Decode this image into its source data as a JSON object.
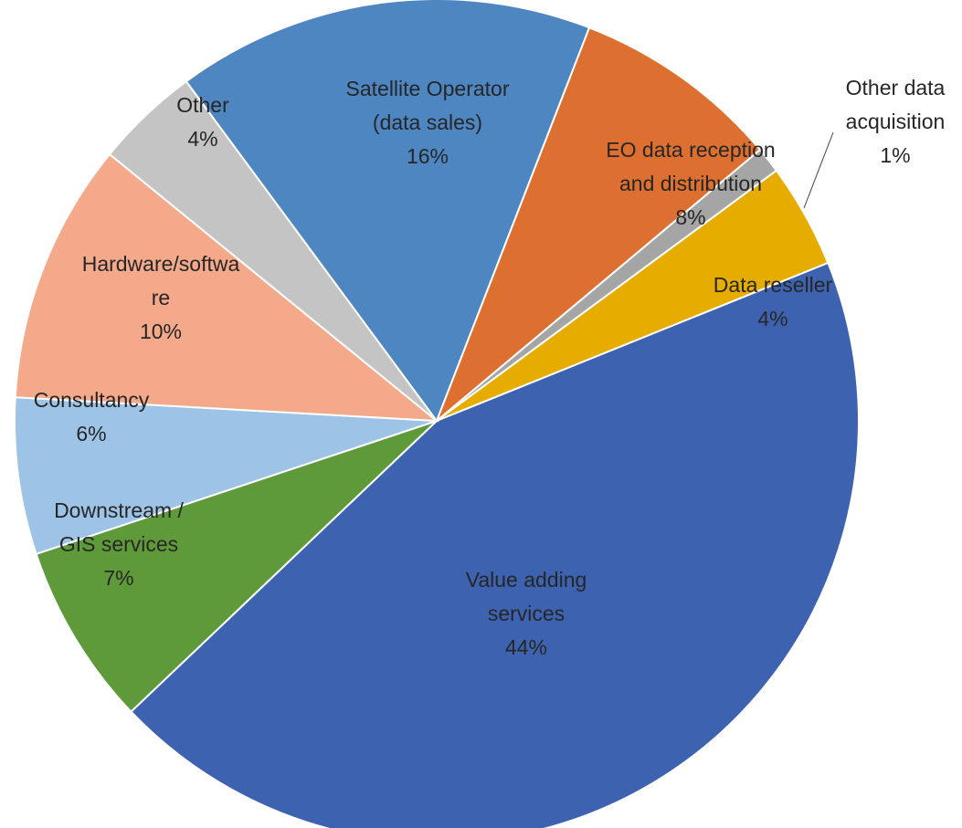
{
  "chart_data": {
    "type": "pie",
    "slices": [
      {
        "key": "other-data-acquisition",
        "name": [
          "Other data",
          "acquisition"
        ],
        "value": 1,
        "value_label": "1%",
        "color": "#a5a5a5"
      },
      {
        "key": "data-reseller",
        "name": [
          "Data reseller"
        ],
        "value": 4,
        "value_label": "4%",
        "color": "#e6ac00"
      },
      {
        "key": "value-adding-services",
        "name": [
          "Value adding",
          "services"
        ],
        "value": 44,
        "value_label": "44%",
        "color": "#3d63b0"
      },
      {
        "key": "downstream-gis-services",
        "name": [
          "Downstream /",
          "GIS services"
        ],
        "value": 7,
        "value_label": "7%",
        "color": "#5e9a3a"
      },
      {
        "key": "consultancy",
        "name": [
          "Consultancy"
        ],
        "value": 6,
        "value_label": "6%",
        "color": "#9dc3e6"
      },
      {
        "key": "hardware-software",
        "name": [
          "Hardware/softwa",
          "re"
        ],
        "value": 10,
        "value_label": "10%",
        "color": "#f4a98a"
      },
      {
        "key": "other",
        "name": [
          "Other"
        ],
        "value": 4,
        "value_label": "4%",
        "color": "#c4c4c4"
      },
      {
        "key": "satellite-operator",
        "name": [
          "Satellite Operator",
          "(data sales)"
        ],
        "value": 16,
        "value_label": "16%",
        "color": "#4e86c2"
      },
      {
        "key": "eo-data-reception",
        "name": [
          "EO data reception",
          "and distribution"
        ],
        "value": 8,
        "value_label": "8%",
        "color": "#dd7030"
      }
    ]
  }
}
